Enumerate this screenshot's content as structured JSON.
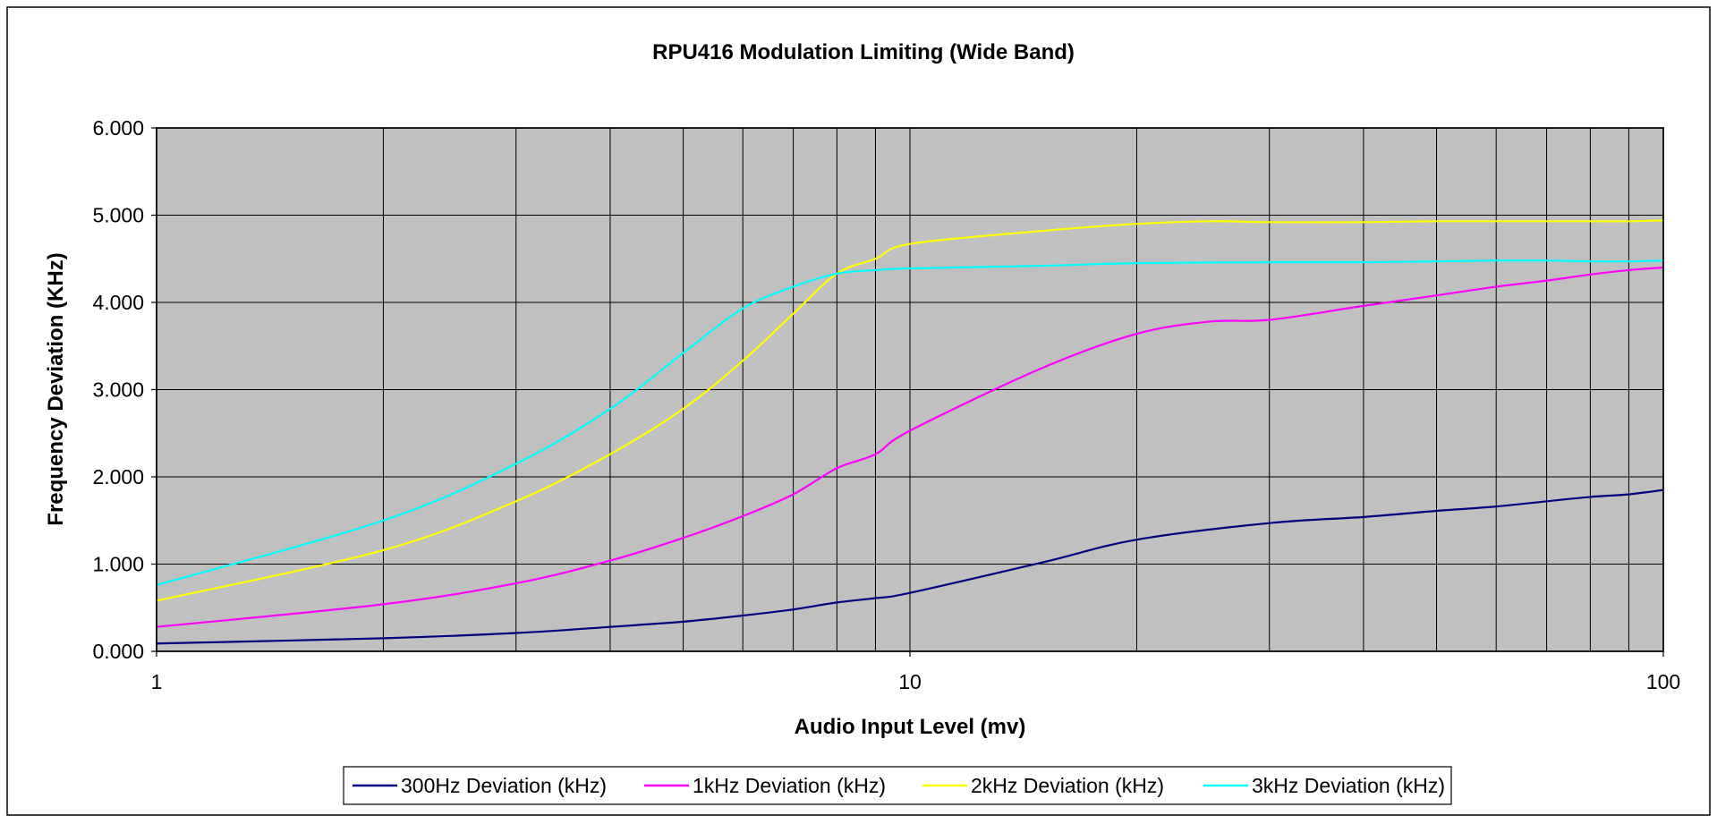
{
  "chart_data": {
    "type": "line",
    "title": "RPU416 Modulation Limiting (Wide Band)",
    "xlabel": "Audio Input Level (mv)",
    "ylabel": "Frequency Deviation (KHz)",
    "x_scale": "log",
    "xlim": [
      1,
      100
    ],
    "ylim": [
      0,
      6
    ],
    "x_ticks": [
      "1",
      "10",
      "100"
    ],
    "y_ticks": [
      "0.000",
      "1.000",
      "2.000",
      "3.000",
      "4.000",
      "5.000",
      "6.000"
    ],
    "grid": true,
    "legend_position": "bottom",
    "plot_background": "#c0c0c0",
    "series": [
      {
        "name": "300Hz Deviation (kHz)",
        "color": "#000080",
        "points": [
          [
            1,
            0.09
          ],
          [
            2,
            0.15
          ],
          [
            3,
            0.21
          ],
          [
            4,
            0.28
          ],
          [
            5,
            0.34
          ],
          [
            6,
            0.41
          ],
          [
            7,
            0.48
          ],
          [
            8,
            0.56
          ],
          [
            9,
            0.61
          ],
          [
            10,
            0.67
          ],
          [
            15,
            1.02
          ],
          [
            20,
            1.28
          ],
          [
            30,
            1.47
          ],
          [
            40,
            1.54
          ],
          [
            50,
            1.61
          ],
          [
            60,
            1.66
          ],
          [
            70,
            1.72
          ],
          [
            80,
            1.77
          ],
          [
            90,
            1.8
          ],
          [
            100,
            1.85
          ]
        ]
      },
      {
        "name": "1kHz Deviation (kHz)",
        "color": "#ff00ff",
        "points": [
          [
            1,
            0.28
          ],
          [
            2,
            0.54
          ],
          [
            3,
            0.78
          ],
          [
            4,
            1.04
          ],
          [
            5,
            1.3
          ],
          [
            6,
            1.55
          ],
          [
            7,
            1.8
          ],
          [
            8,
            2.1
          ],
          [
            9,
            2.26
          ],
          [
            10,
            2.53
          ],
          [
            15,
            3.25
          ],
          [
            20,
            3.64
          ],
          [
            25,
            3.78
          ],
          [
            30,
            3.8
          ],
          [
            40,
            3.96
          ],
          [
            50,
            4.08
          ],
          [
            60,
            4.18
          ],
          [
            70,
            4.25
          ],
          [
            80,
            4.32
          ],
          [
            90,
            4.37
          ],
          [
            100,
            4.4
          ]
        ]
      },
      {
        "name": "2kHz Deviation (kHz)",
        "color": "#ffff00",
        "points": [
          [
            1,
            0.58
          ],
          [
            2,
            1.16
          ],
          [
            3,
            1.72
          ],
          [
            4,
            2.26
          ],
          [
            5,
            2.78
          ],
          [
            6,
            3.33
          ],
          [
            7,
            3.87
          ],
          [
            8,
            4.33
          ],
          [
            9,
            4.5
          ],
          [
            10,
            4.67
          ],
          [
            15,
            4.82
          ],
          [
            20,
            4.9
          ],
          [
            25,
            4.93
          ],
          [
            30,
            4.92
          ],
          [
            40,
            4.92
          ],
          [
            50,
            4.93
          ],
          [
            60,
            4.93
          ],
          [
            70,
            4.93
          ],
          [
            80,
            4.93
          ],
          [
            90,
            4.93
          ],
          [
            100,
            4.94
          ]
        ]
      },
      {
        "name": "3kHz Deviation (kHz)",
        "color": "#00ffff",
        "points": [
          [
            1,
            0.76
          ],
          [
            2,
            1.5
          ],
          [
            3,
            2.15
          ],
          [
            4,
            2.78
          ],
          [
            5,
            3.42
          ],
          [
            6,
            3.93
          ],
          [
            7,
            4.18
          ],
          [
            8,
            4.33
          ],
          [
            9,
            4.37
          ],
          [
            10,
            4.39
          ],
          [
            15,
            4.42
          ],
          [
            20,
            4.45
          ],
          [
            30,
            4.46
          ],
          [
            40,
            4.46
          ],
          [
            50,
            4.47
          ],
          [
            60,
            4.48
          ],
          [
            70,
            4.48
          ],
          [
            80,
            4.47
          ],
          [
            90,
            4.47
          ],
          [
            100,
            4.48
          ]
        ]
      }
    ]
  }
}
